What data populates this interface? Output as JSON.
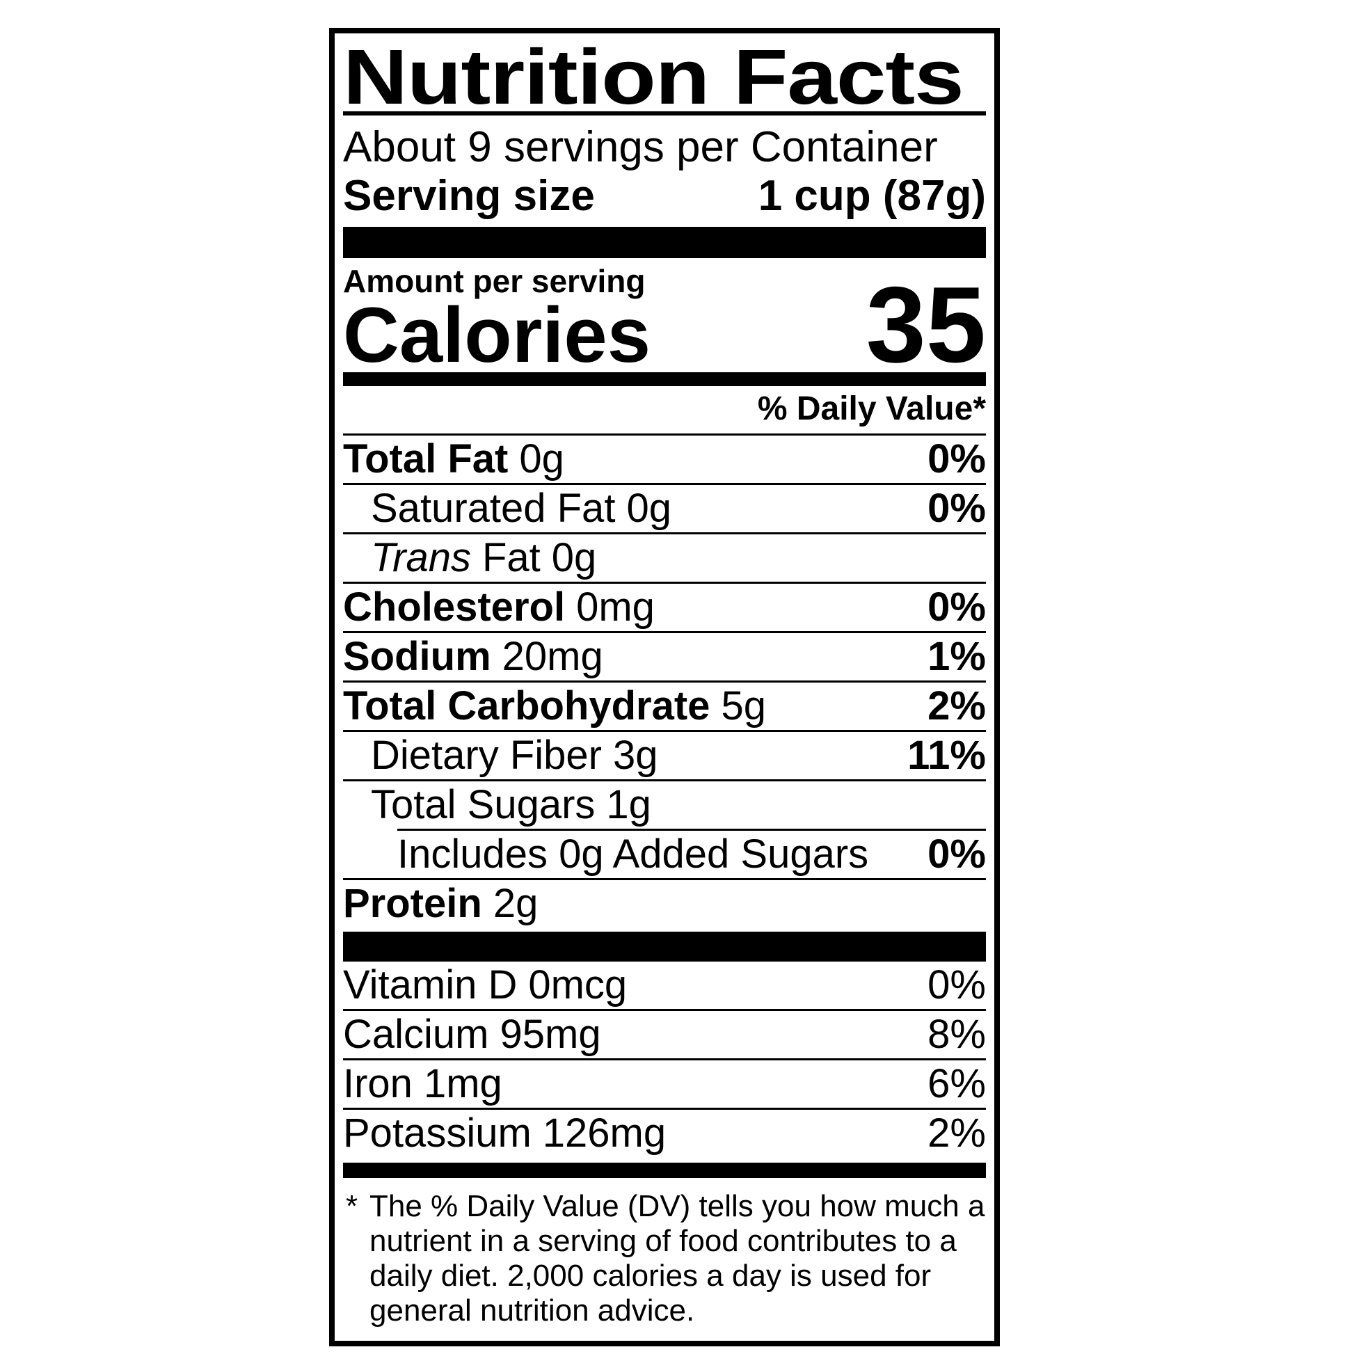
{
  "colors": {
    "ink": "#000000",
    "paper": "#ffffff"
  },
  "nutrition_label": {
    "title": "Nutrition Facts",
    "servings_per_container": "About 9 servings per Container",
    "serving_size": {
      "label": "Serving size",
      "value": "1 cup (87g)"
    },
    "amount_per_serving": "Amount per serving",
    "calories": {
      "label": "Calories",
      "value": "35"
    },
    "daily_value_header": "% Daily Value*",
    "nutrients": {
      "total_fat": {
        "name": "Total Fat",
        "amount": "0g",
        "dv": "0%"
      },
      "saturated_fat": {
        "name": "Saturated Fat",
        "amount": "0g",
        "dv": "0%"
      },
      "trans_fat": {
        "name_italic": "Trans",
        "name_rest": "Fat",
        "amount": "0g"
      },
      "cholesterol": {
        "name": "Cholesterol",
        "amount": "0mg",
        "dv": "0%"
      },
      "sodium": {
        "name": "Sodium",
        "amount": "20mg",
        "dv": "1%"
      },
      "total_carbohydrate": {
        "name": "Total Carbohydrate",
        "amount": "5g",
        "dv": "2%"
      },
      "dietary_fiber": {
        "name": "Dietary Fiber",
        "amount": "3g",
        "dv": "11%"
      },
      "total_sugars": {
        "name": "Total Sugars",
        "amount": "1g"
      },
      "added_sugars": {
        "text": "Includes 0g Added Sugars",
        "dv": "0%"
      },
      "protein": {
        "name": "Protein",
        "amount": "2g"
      }
    },
    "micronutrients": [
      {
        "name": "Vitamin D",
        "amount": "0mcg",
        "dv": "0%"
      },
      {
        "name": "Calcium",
        "amount": "95mg",
        "dv": "8%"
      },
      {
        "name": "Iron",
        "amount": "1mg",
        "dv": "6%"
      },
      {
        "name": "Potassium",
        "amount": "126mg",
        "dv": "2%"
      }
    ],
    "footnote": {
      "marker": "*",
      "lines": [
        "The % Daily Value (DV) tells you how much a",
        "nutrient in a serving of food contributes to a",
        "daily diet. 2,000 calories a day is used for",
        "general nutrition advice."
      ]
    }
  }
}
